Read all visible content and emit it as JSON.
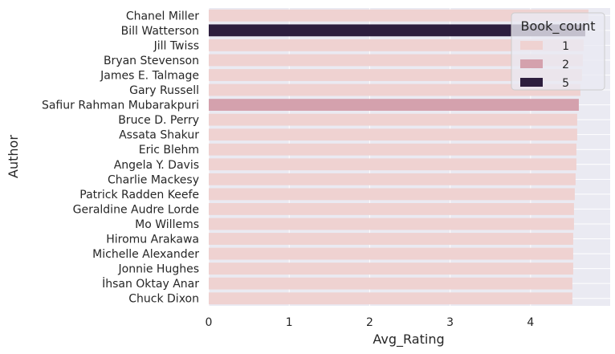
{
  "chart_data": {
    "type": "bar",
    "orientation": "horizontal",
    "xlabel": "Avg_Rating",
    "ylabel": "Author",
    "xlim": [
      0,
      4.8
    ],
    "xticks": [
      0,
      1,
      2,
      3,
      4
    ],
    "grid": true,
    "legend": {
      "title": "Book_count",
      "placement": "top-right",
      "entries": [
        {
          "label": "1",
          "color": "#efd2d1"
        },
        {
          "label": "2",
          "color": "#d4a1ad"
        },
        {
          "label": "5",
          "color": "#2d1e3e"
        }
      ]
    },
    "categories": [
      "Chanel Miller",
      "Bill Watterson",
      "Jill Twiss",
      "Bryan Stevenson",
      "James E. Talmage",
      "Gary Russell",
      "Safiur Rahman Mubarakpuri",
      "Bruce D. Perry",
      "Assata Shakur",
      "Eric Blehm",
      "Angela Y. Davis",
      "Charlie Mackesy",
      "Patrick Radden Keefe",
      "Geraldine Audre Lorde",
      "Mo Willems",
      "Hiromu Arakawa",
      "Michelle Alexander",
      "Jonnie Hughes",
      "İhsan Oktay Anar",
      "Chuck Dixon"
    ],
    "values": [
      4.72,
      4.68,
      4.66,
      4.65,
      4.64,
      4.62,
      4.6,
      4.58,
      4.58,
      4.57,
      4.57,
      4.56,
      4.55,
      4.54,
      4.54,
      4.53,
      4.53,
      4.53,
      4.52,
      4.52
    ],
    "book_count": [
      "1",
      "5",
      "1",
      "1",
      "1",
      "1",
      "2",
      "1",
      "1",
      "1",
      "1",
      "1",
      "1",
      "1",
      "1",
      "1",
      "1",
      "1",
      "1",
      "1"
    ]
  }
}
